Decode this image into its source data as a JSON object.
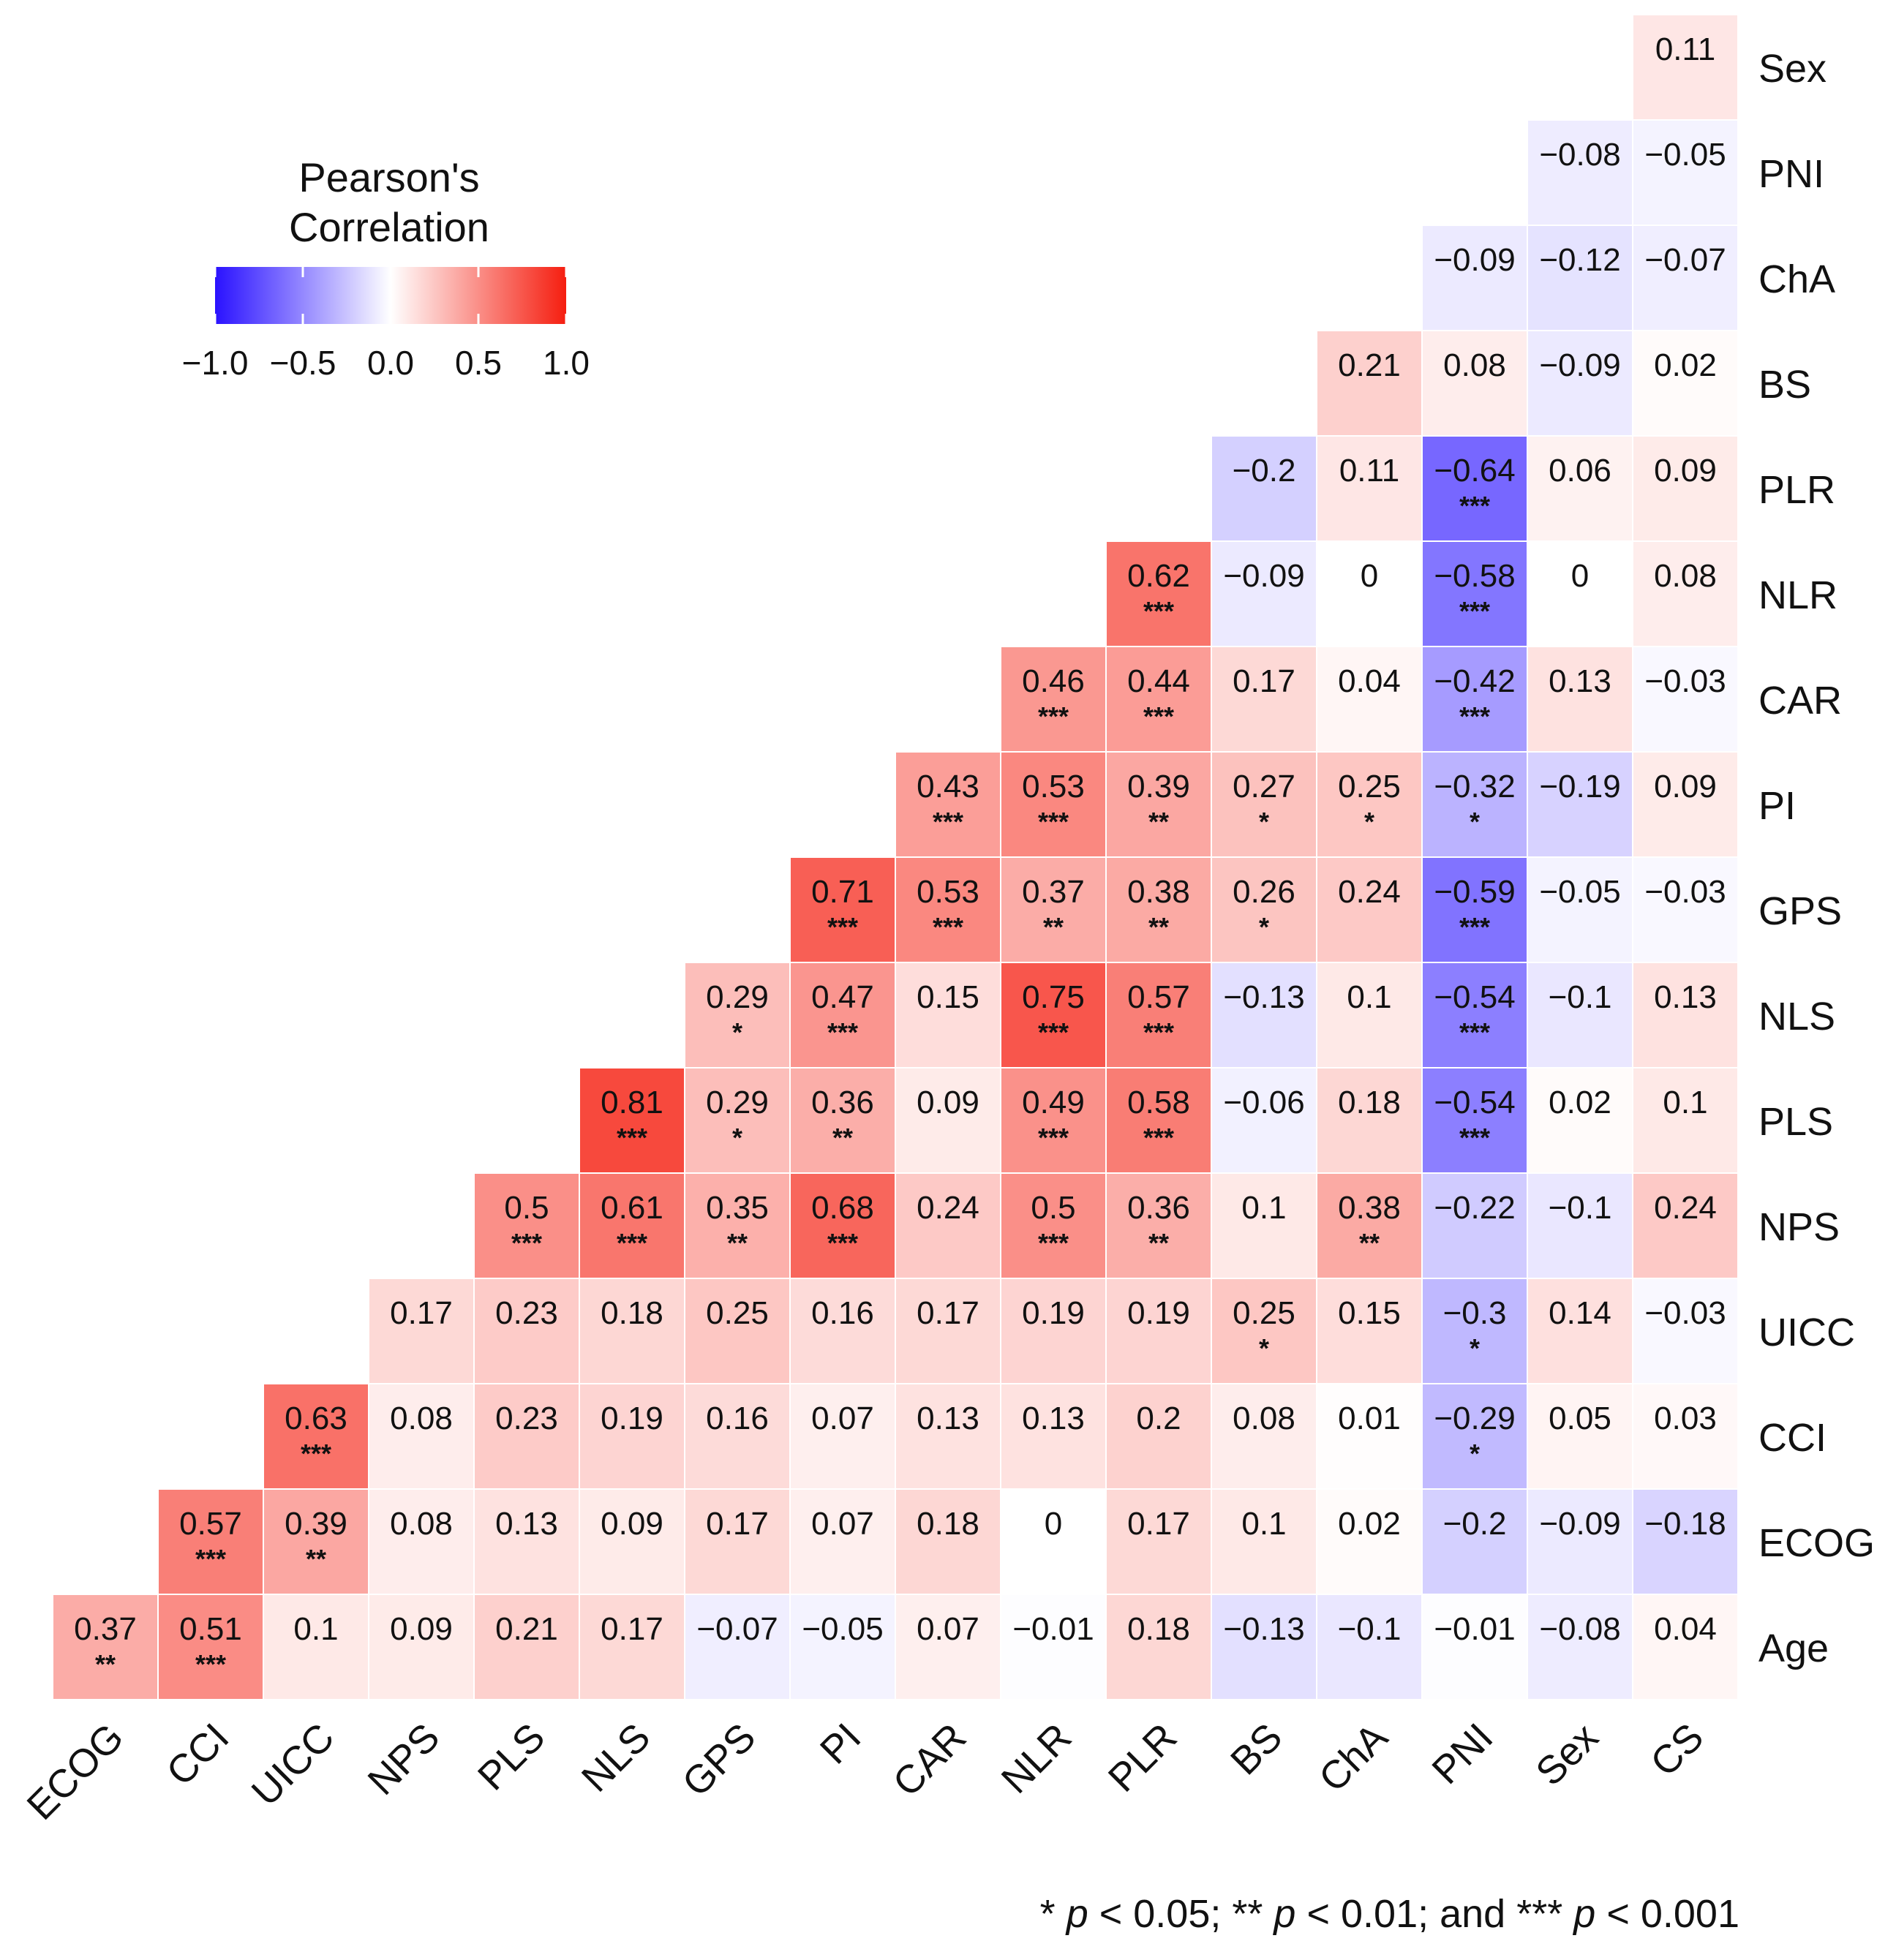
{
  "chart_data": {
    "type": "heatmap",
    "legend": {
      "title_line1": "Pearson's",
      "title_line2": "Correlation",
      "ticks": [
        "−1.0",
        "−0.5",
        "0.0",
        "0.5",
        "1.0"
      ],
      "range": [
        -1.0,
        1.0
      ],
      "colors": {
        "negative": "#2a12ff",
        "zero": "#ffffff",
        "positive": "#f51e10"
      },
      "placement": "top-left"
    },
    "columns": [
      "ECOG",
      "CCI",
      "UICC",
      "NPS",
      "PLS",
      "NLS",
      "GPS",
      "PI",
      "CAR",
      "NLR",
      "PLR",
      "BS",
      "ChA",
      "PNI",
      "Sex",
      "CS"
    ],
    "rows": [
      "Sex",
      "PNI",
      "ChA",
      "BS",
      "PLR",
      "NLR",
      "CAR",
      "PI",
      "GPS",
      "NLS",
      "PLS",
      "NPS",
      "UICC",
      "CCI",
      "ECOG",
      "Age"
    ],
    "values": [
      [
        null,
        null,
        null,
        null,
        null,
        null,
        null,
        null,
        null,
        null,
        null,
        null,
        null,
        null,
        null,
        0.11
      ],
      [
        null,
        null,
        null,
        null,
        null,
        null,
        null,
        null,
        null,
        null,
        null,
        null,
        null,
        null,
        -0.08,
        -0.05
      ],
      [
        null,
        null,
        null,
        null,
        null,
        null,
        null,
        null,
        null,
        null,
        null,
        null,
        null,
        -0.09,
        -0.12,
        -0.07
      ],
      [
        null,
        null,
        null,
        null,
        null,
        null,
        null,
        null,
        null,
        null,
        null,
        null,
        0.21,
        0.08,
        -0.09,
        0.02
      ],
      [
        null,
        null,
        null,
        null,
        null,
        null,
        null,
        null,
        null,
        null,
        null,
        -0.2,
        0.11,
        -0.64,
        0.06,
        0.09
      ],
      [
        null,
        null,
        null,
        null,
        null,
        null,
        null,
        null,
        null,
        null,
        0.62,
        -0.09,
        0,
        -0.58,
        0,
        0.08
      ],
      [
        null,
        null,
        null,
        null,
        null,
        null,
        null,
        null,
        null,
        0.46,
        0.44,
        0.17,
        0.04,
        -0.42,
        0.13,
        -0.03
      ],
      [
        null,
        null,
        null,
        null,
        null,
        null,
        null,
        null,
        0.43,
        0.53,
        0.39,
        0.27,
        0.25,
        -0.32,
        -0.19,
        0.09
      ],
      [
        null,
        null,
        null,
        null,
        null,
        null,
        null,
        0.71,
        0.53,
        0.37,
        0.38,
        0.26,
        0.24,
        -0.59,
        -0.05,
        -0.03
      ],
      [
        null,
        null,
        null,
        null,
        null,
        null,
        0.29,
        0.47,
        0.15,
        0.75,
        0.57,
        -0.13,
        0.1,
        -0.54,
        -0.1,
        0.13
      ],
      [
        null,
        null,
        null,
        null,
        null,
        0.81,
        0.29,
        0.36,
        0.09,
        0.49,
        0.58,
        -0.06,
        0.18,
        -0.54,
        0.02,
        0.1
      ],
      [
        null,
        null,
        null,
        null,
        0.5,
        0.61,
        0.35,
        0.68,
        0.24,
        0.5,
        0.36,
        0.1,
        0.38,
        -0.22,
        -0.1,
        0.24
      ],
      [
        null,
        null,
        null,
        0.17,
        0.23,
        0.18,
        0.25,
        0.16,
        0.17,
        0.19,
        0.19,
        0.25,
        0.15,
        -0.3,
        0.14,
        -0.03
      ],
      [
        null,
        null,
        0.63,
        0.08,
        0.23,
        0.19,
        0.16,
        0.07,
        0.13,
        0.13,
        0.2,
        0.08,
        0.01,
        -0.29,
        0.05,
        0.03
      ],
      [
        null,
        0.57,
        0.39,
        0.08,
        0.13,
        0.09,
        0.17,
        0.07,
        0.18,
        0,
        0.17,
        0.1,
        0.02,
        -0.2,
        -0.09,
        -0.18
      ],
      [
        0.37,
        0.51,
        0.1,
        0.09,
        0.21,
        0.17,
        -0.07,
        -0.05,
        0.07,
        -0.01,
        0.18,
        -0.13,
        -0.1,
        -0.01,
        -0.08,
        0.04
      ]
    ],
    "significance": [
      [
        "",
        "",
        "",
        "",
        "",
        "",
        "",
        "",
        "",
        "",
        "",
        "",
        "",
        "",
        "",
        ""
      ],
      [
        "",
        "",
        "",
        "",
        "",
        "",
        "",
        "",
        "",
        "",
        "",
        "",
        "",
        "",
        "",
        ""
      ],
      [
        "",
        "",
        "",
        "",
        "",
        "",
        "",
        "",
        "",
        "",
        "",
        "",
        "",
        "",
        "",
        ""
      ],
      [
        "",
        "",
        "",
        "",
        "",
        "",
        "",
        "",
        "",
        "",
        "",
        "",
        "",
        "",
        "",
        ""
      ],
      [
        "",
        "",
        "",
        "",
        "",
        "",
        "",
        "",
        "",
        "",
        "",
        "",
        "",
        "***",
        "",
        ""
      ],
      [
        "",
        "",
        "",
        "",
        "",
        "",
        "",
        "",
        "",
        "",
        "***",
        "",
        "",
        "***",
        "",
        ""
      ],
      [
        "",
        "",
        "",
        "",
        "",
        "",
        "",
        "",
        "",
        "***",
        "***",
        "",
        "",
        "***",
        "",
        ""
      ],
      [
        "",
        "",
        "",
        "",
        "",
        "",
        "",
        "",
        "***",
        "***",
        "**",
        "*",
        "*",
        "*",
        "",
        ""
      ],
      [
        "",
        "",
        "",
        "",
        "",
        "",
        "",
        "***",
        "***",
        "**",
        "**",
        "*",
        "",
        "***",
        "",
        ""
      ],
      [
        "",
        "",
        "",
        "",
        "",
        "",
        "*",
        "***",
        "",
        "***",
        "***",
        "",
        "",
        "***",
        "",
        ""
      ],
      [
        "",
        "",
        "",
        "",
        "",
        "***",
        "*",
        "**",
        "",
        "***",
        "***",
        "",
        "",
        "***",
        "",
        ""
      ],
      [
        "",
        "",
        "",
        "",
        "***",
        "***",
        "**",
        "***",
        "",
        "***",
        "**",
        "",
        "**",
        "",
        "",
        ""
      ],
      [
        "",
        "",
        "",
        "",
        "",
        "",
        "",
        "",
        "",
        "",
        "",
        "*",
        "",
        "*",
        "",
        ""
      ],
      [
        "",
        "",
        "***",
        "",
        "",
        "",
        "",
        "",
        "",
        "",
        "",
        "",
        "",
        "*",
        "",
        ""
      ],
      [
        "",
        "***",
        "**",
        "",
        "",
        "",
        "",
        "",
        "",
        "",
        "",
        "",
        "",
        "",
        "",
        ""
      ],
      [
        "**",
        "***",
        "",
        "",
        "",
        "",
        "",
        "",
        "",
        "",
        "",
        "",
        "",
        "",
        "",
        ""
      ]
    ]
  },
  "footnote": {
    "part1": "* ",
    "p1": "p",
    "part2": " < 0.05; ** ",
    "p2": "p",
    "part3": " < 0.01; and *** ",
    "p3": "p",
    "part4": " < 0.001"
  }
}
